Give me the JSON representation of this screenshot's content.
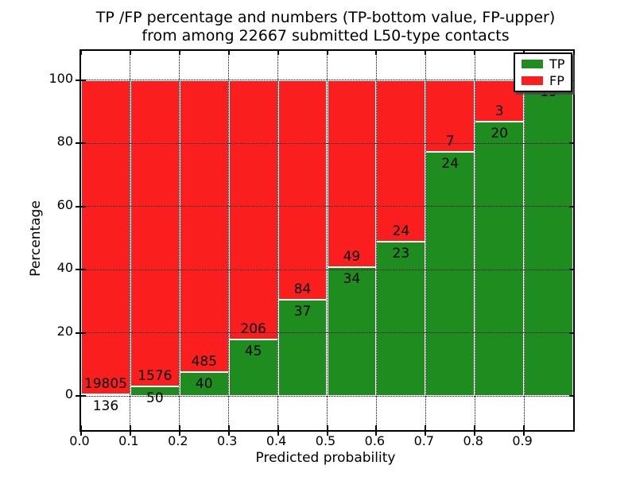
{
  "figure": {
    "background": "#ffffff"
  },
  "chart_data": {
    "type": "bar",
    "stacked": true,
    "orientation": "vertical",
    "title_lines": [
      "TP /FP percentage and numbers (TP-bottom value, FP-upper)",
      "from among 22667 submitted L50-type contacts"
    ],
    "total_contacts": 22667,
    "xlabel": "Predicted probability",
    "ylabel": "Percentage",
    "xlim": [
      0.0,
      1.0
    ],
    "ylim": [
      -10.7,
      109.3
    ],
    "bin_width": 0.1,
    "x_bin_edges": [
      0.0,
      0.1,
      0.2,
      0.3,
      0.4,
      0.5,
      0.6,
      0.7,
      0.8,
      0.9,
      1.0
    ],
    "xtick_values": [
      0.0,
      0.1,
      0.2,
      0.3,
      0.4,
      0.5,
      0.6,
      0.7,
      0.8,
      0.9
    ],
    "xtick_labels": [
      "0.0",
      "0.1",
      "0.2",
      "0.3",
      "0.4",
      "0.5",
      "0.6",
      "0.7",
      "0.8",
      "0.9"
    ],
    "ytick_values": [
      0,
      20,
      40,
      60,
      80,
      100
    ],
    "ytick_labels": [
      "0",
      "20",
      "40",
      "60",
      "80",
      "100"
    ],
    "grid": {
      "show": true,
      "style": "dotted",
      "color": "#000000"
    },
    "series": [
      {
        "name": "TP",
        "color": "#1e8c1e",
        "position": "bottom",
        "counts": [
          136,
          50,
          40,
          45,
          37,
          34,
          23,
          24,
          20,
          19
        ]
      },
      {
        "name": "FP",
        "color": "#fa1e1e",
        "position": "top",
        "counts": [
          19805,
          1576,
          485,
          206,
          84,
          49,
          24,
          7,
          3,
          0
        ]
      }
    ],
    "tp_percentages": [
      0.68,
      3.08,
      7.62,
      17.93,
      30.58,
      40.96,
      48.94,
      77.42,
      86.96,
      100.0
    ],
    "legend": {
      "location": "upper right",
      "entries": [
        {
          "label": "TP",
          "color": "#1e8c1e"
        },
        {
          "label": "FP",
          "color": "#fa1e1e"
        }
      ]
    }
  }
}
